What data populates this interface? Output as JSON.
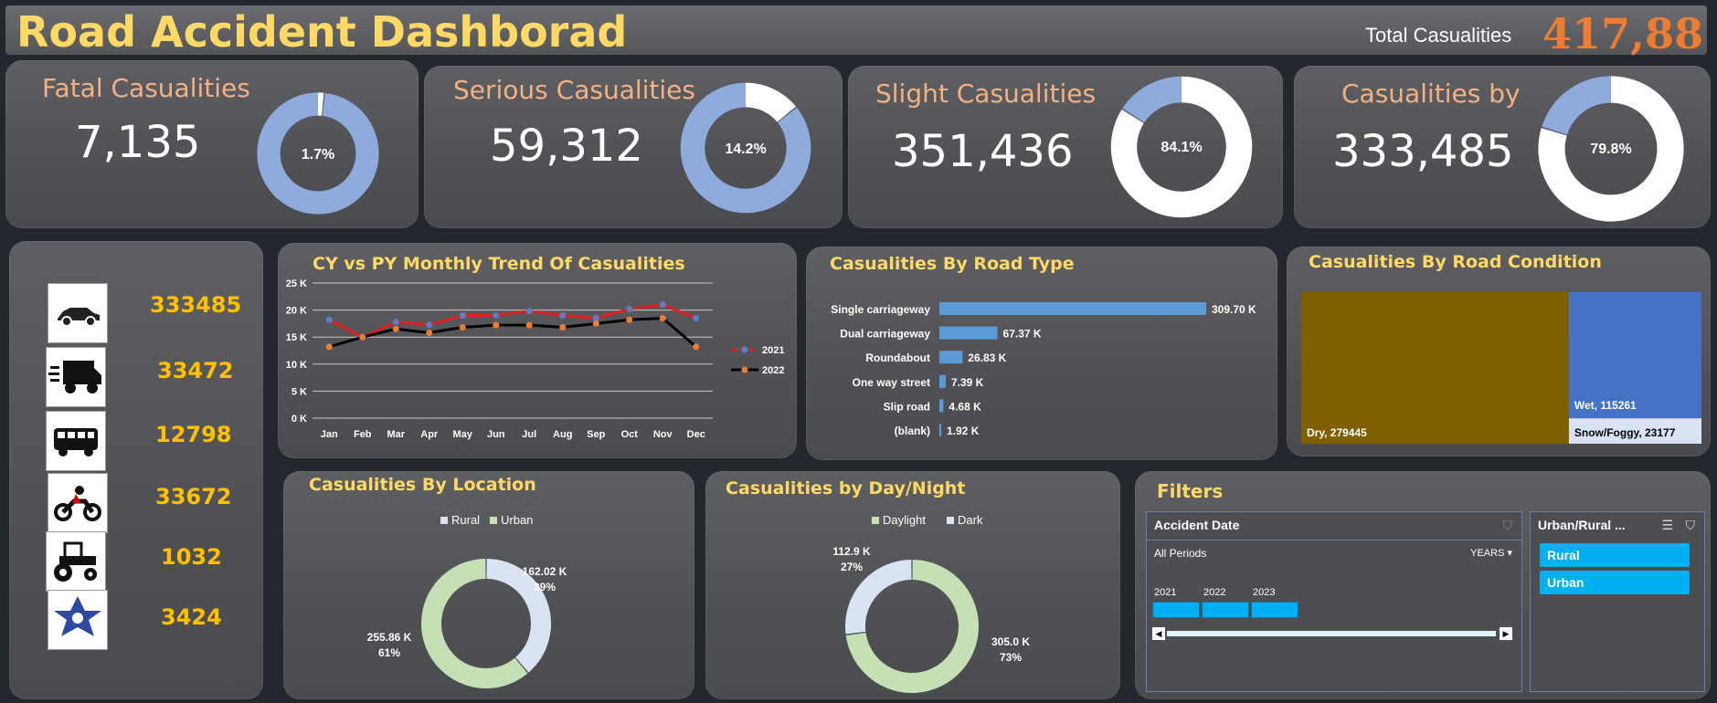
{
  "header": {
    "title": "Road Accident Dashborad",
    "total_label": "Total Casualities",
    "total_value": "417,88"
  },
  "kpis": [
    {
      "label": "Fatal Casualities",
      "value": "7,135",
      "pct_text": "1.7%",
      "pct": 0.017
    },
    {
      "label": "Serious Casualities",
      "value": "59,312",
      "pct_text": "14.2%",
      "pct": 0.142
    },
    {
      "label": "Slight Casualities",
      "value": "351,436",
      "pct_text": "84.1%",
      "pct": 0.841
    },
    {
      "label": "Casualities by",
      "value": "333,485",
      "pct_text": "79.8%",
      "pct": 0.798
    }
  ],
  "colors": {
    "donut": "#8faadc",
    "donut_rest": "#ffffff",
    "accent": "#ffd966",
    "value": "#ffc000",
    "line2021": "#e02020",
    "line2022": "#000000",
    "bar": "#5b9bd5",
    "dry": "#7f6000",
    "wet": "#4472c4",
    "snow": "#dae3f3",
    "rural": "#dae3f3",
    "urban": "#c5e0b4",
    "slicer_btn": "#00b0f0"
  },
  "vehicles": [
    {
      "icon": "car-icon",
      "value": "333485"
    },
    {
      "icon": "van-icon",
      "value": "33472"
    },
    {
      "icon": "bus-icon",
      "value": "12798"
    },
    {
      "icon": "motorcycle-icon",
      "value": "33672"
    },
    {
      "icon": "tractor-icon",
      "value": "1032"
    },
    {
      "icon": "other-vehicle-icon",
      "value": "3424"
    }
  ],
  "trend": {
    "title": "CY vs PY Monthly Trend Of Casualities"
  },
  "road_type": {
    "title": "Casualities By Road Type"
  },
  "road_condition": {
    "title": "Casualities By Road Condition"
  },
  "location": {
    "title": "Casualities By Location"
  },
  "daynight": {
    "title": "Casualities by Day/Night"
  },
  "chart_data": [
    {
      "type": "line",
      "title": "CY vs PY Monthly Trend Of Casualities",
      "categories": [
        "Jan",
        "Feb",
        "Mar",
        "Apr",
        "May",
        "Jun",
        "Jul",
        "Aug",
        "Sep",
        "Oct",
        "Nov",
        "Dec"
      ],
      "y_ticks": [
        "0 K",
        "5 K",
        "10 K",
        "15 K",
        "20 K",
        "25 K"
      ],
      "ylim": [
        0,
        25
      ],
      "grid": true,
      "legend": "right",
      "series": [
        {
          "name": "2021",
          "values": [
            18.2,
            15.0,
            17.8,
            17.3,
            19.0,
            19.0,
            19.8,
            19.0,
            18.5,
            20.2,
            21.0,
            18.5
          ]
        },
        {
          "name": "2022",
          "values": [
            13.2,
            15.0,
            16.5,
            15.8,
            16.8,
            17.2,
            17.2,
            16.8,
            17.5,
            18.2,
            18.5,
            13.2
          ]
        }
      ]
    },
    {
      "type": "bar",
      "orientation": "horizontal",
      "title": "Casualities By Road Type",
      "categories": [
        "Single carriageway",
        "Dual carriageway",
        "Roundabout",
        "One way street",
        "Slip road",
        "(blank)"
      ],
      "values": [
        309.7,
        67.37,
        26.83,
        7.39,
        4.68,
        1.92
      ],
      "labels": [
        "309.70 K",
        "67.37 K",
        "26.83 K",
        "7.39 K",
        "4.68 K",
        "1.92 K"
      ]
    },
    {
      "type": "treemap",
      "title": "Casualities By Road Condition",
      "items": [
        {
          "label": "Dry, 279445",
          "value": 279445
        },
        {
          "label": "Wet, 115261",
          "value": 115261
        },
        {
          "label": "Snow/Foggy, 23177",
          "value": 23177
        }
      ]
    },
    {
      "type": "pie",
      "title": "Casualities By Location",
      "legend": "top",
      "series": [
        {
          "name": "Rural",
          "value": 162.02,
          "label": "162.02 K",
          "pct": "39%"
        },
        {
          "name": "Urban",
          "value": 255.86,
          "label": "255.86 K",
          "pct": "61%"
        }
      ]
    },
    {
      "type": "pie",
      "title": "Casualities by Day/Night",
      "legend": "top",
      "series": [
        {
          "name": "Daylight",
          "value": 305.0,
          "label": "305.0 K",
          "pct": "73%"
        },
        {
          "name": "Dark",
          "value": 112.9,
          "label": "112.9 K",
          "pct": "27%"
        }
      ]
    }
  ],
  "filters": {
    "title": "Filters",
    "date": {
      "title": "Accident Date",
      "periods": "All Periods",
      "unit": "YEARS",
      "years": [
        "2021",
        "2022",
        "2023"
      ]
    },
    "area": {
      "title": "Urban/Rural ...",
      "items": [
        "Rural",
        "Urban"
      ]
    }
  }
}
